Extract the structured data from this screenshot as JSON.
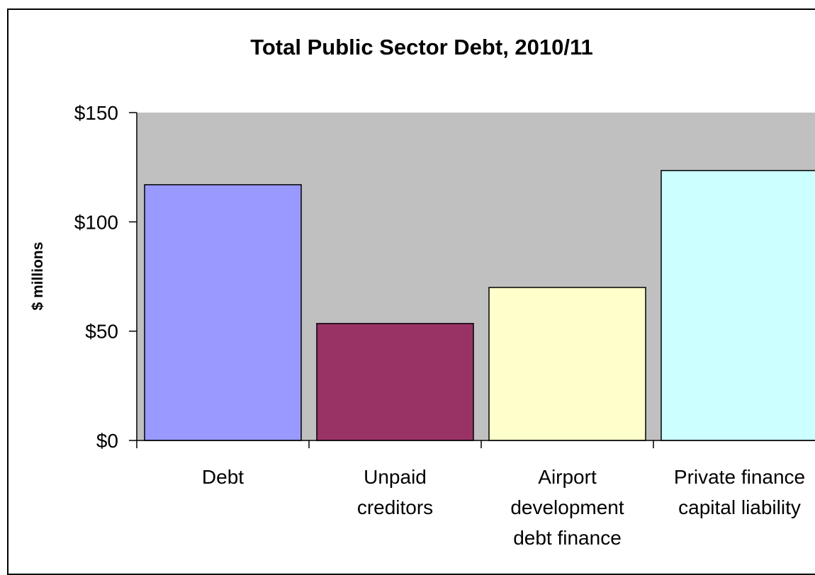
{
  "chart_data": {
    "type": "bar",
    "title": "Total Public Sector Debt, 2010/11",
    "ylabel": "$ millions",
    "xlabel": "",
    "ylim": [
      0,
      150
    ],
    "yticks": [
      0,
      50,
      100,
      150
    ],
    "ytick_labels": [
      "$0",
      "$50",
      "$100",
      "$150"
    ],
    "categories": [
      [
        "Debt"
      ],
      [
        "Unpaid",
        "creditors"
      ],
      [
        "Airport",
        "development",
        "debt finance"
      ],
      [
        "Private finance",
        "capital liability"
      ]
    ],
    "values": [
      117,
      53.5,
      70,
      123.5
    ],
    "colors": [
      "#9999FF",
      "#993366",
      "#FFFFCC",
      "#CCFFFF"
    ],
    "plot_background": "#C0C0C0",
    "grid": false,
    "legend": "none"
  }
}
